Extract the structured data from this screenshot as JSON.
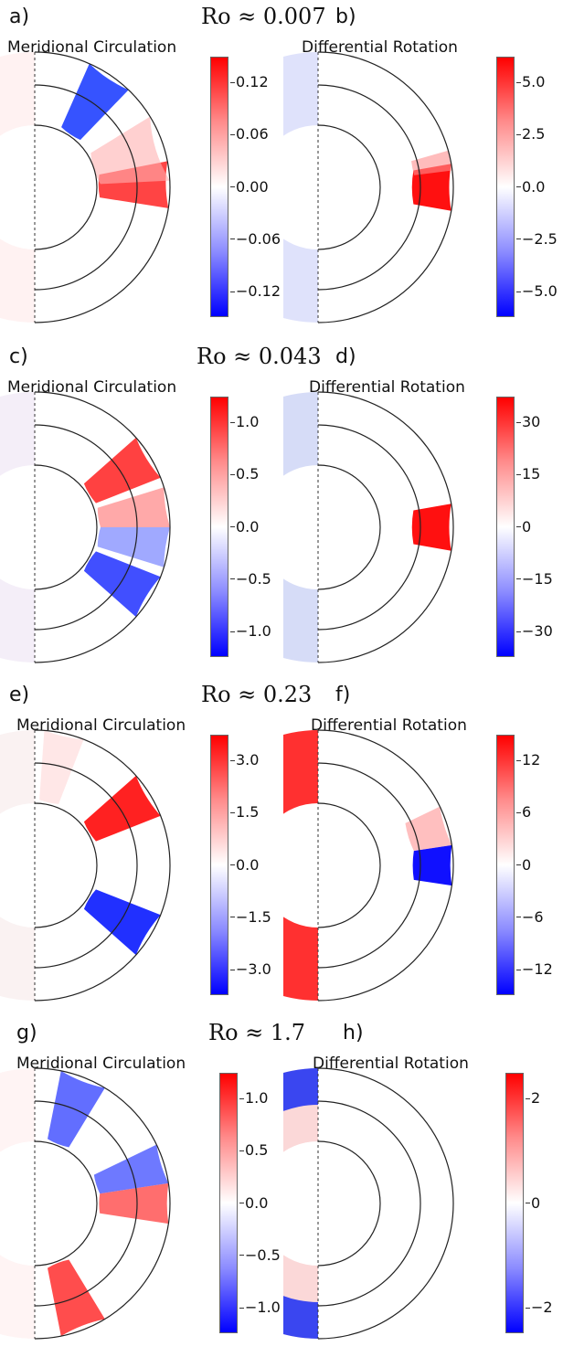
{
  "colors": {
    "positive": "#ff0000",
    "zero": "#ffffff",
    "negative": "#0000ff"
  },
  "rows": [
    {
      "left_label": "a)",
      "right_label": "b)",
      "ro": "Ro ≈ 0.007",
      "left_title": "Meridional Circulation",
      "right_title": "Differential Rotation",
      "left_ticks": [
        "0.12",
        "0.06",
        "0.00",
        "−0.06",
        "−0.12"
      ],
      "right_ticks": [
        "5.0",
        "2.5",
        "0.0",
        "−2.5",
        "−5.0"
      ]
    },
    {
      "left_label": "c)",
      "right_label": "d)",
      "ro": "Ro ≈ 0.043",
      "left_title": "Meridional Circulation",
      "right_title": "Differential Rotation",
      "left_ticks": [
        "1.0",
        "0.5",
        "0.0",
        "−0.5",
        "−1.0"
      ],
      "right_ticks": [
        "30",
        "15",
        "0",
        "−15",
        "−30"
      ]
    },
    {
      "left_label": "e)",
      "right_label": "f)",
      "ro": "Ro ≈ 0.23",
      "left_title": "Meridional Circulation",
      "right_title": "Differential Rotation",
      "left_ticks": [
        "3.0",
        "1.5",
        "0.0",
        "−1.5",
        "−3.0"
      ],
      "right_ticks": [
        "12",
        "6",
        "0",
        "−6",
        "−12"
      ]
    },
    {
      "left_label": "g)",
      "right_label": "h)",
      "ro": "Ro ≈ 1.7",
      "left_title": "Meridional Circulation",
      "right_title": "Differential Rotation",
      "left_ticks": [
        "1.0",
        "0.5",
        "0.0",
        "−0.5",
        "−1.0"
      ],
      "right_ticks": [
        "2",
        "0",
        "−2"
      ]
    }
  ],
  "chart_data": [
    {
      "type": "heatmap",
      "panel": "a)",
      "title": "Meridional Circulation",
      "colorbar_ticks": [
        0.12,
        0.06,
        0.0,
        -0.06,
        -0.12
      ],
      "clim": [
        -0.14,
        0.14
      ]
    },
    {
      "type": "heatmap",
      "panel": "b)",
      "title": "Differential Rotation",
      "colorbar_ticks": [
        5.0,
        2.5,
        0.0,
        -2.5,
        -5.0
      ],
      "clim": [
        -5.5,
        5.5
      ]
    },
    {
      "type": "heatmap",
      "panel": "c)",
      "title": "Meridional Circulation",
      "colorbar_ticks": [
        1.0,
        0.5,
        0.0,
        -0.5,
        -1.0
      ],
      "clim": [
        -1.1,
        1.1
      ]
    },
    {
      "type": "heatmap",
      "panel": "d)",
      "title": "Differential Rotation",
      "colorbar_ticks": [
        30,
        15,
        0,
        -15,
        -30
      ],
      "clim": [
        -33,
        33
      ]
    },
    {
      "type": "heatmap",
      "panel": "e)",
      "title": "Meridional Circulation",
      "colorbar_ticks": [
        3.0,
        1.5,
        0.0,
        -1.5,
        -3.0
      ],
      "clim": [
        -3.5,
        3.5
      ]
    },
    {
      "type": "heatmap",
      "panel": "f)",
      "title": "Differential Rotation",
      "colorbar_ticks": [
        12,
        6,
        0,
        -6,
        -12
      ],
      "clim": [
        -13,
        13
      ]
    },
    {
      "type": "heatmap",
      "panel": "g)",
      "title": "Meridional Circulation",
      "colorbar_ticks": [
        1.0,
        0.5,
        0.0,
        -0.5,
        -1.0
      ],
      "clim": [
        -1.2,
        1.2
      ]
    },
    {
      "type": "heatmap",
      "panel": "h)",
      "title": "Differential Rotation",
      "colorbar_ticks": [
        2,
        0,
        -2
      ],
      "clim": [
        -3.6,
        3.6
      ]
    }
  ]
}
